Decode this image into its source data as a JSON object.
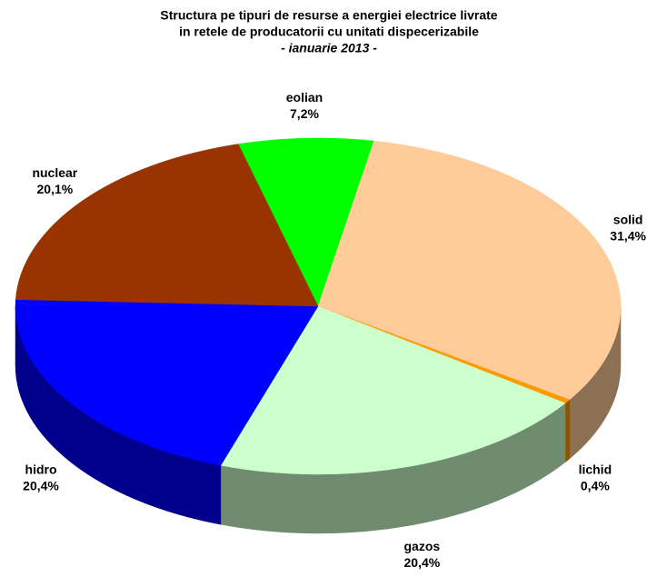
{
  "chart_data": {
    "type": "pie",
    "title": [
      "Structura pe tipuri de resurse a energiei electrice livrate",
      "in retele de producatorii cu unitati dispecerizabile"
    ],
    "subtitle": "- ianuarie 2013 -",
    "categories": [
      "eolian",
      "solid",
      "lichid",
      "gazos",
      "hidro",
      "nuclear"
    ],
    "values": [
      7.2,
      31.4,
      0.4,
      20.4,
      20.4,
      20.1
    ],
    "value_labels": [
      "7,2%",
      "31,4%",
      "0,4%",
      "20,4%",
      "20,4%",
      "20,1%"
    ],
    "colors": [
      "#00ff00",
      "#ffcc99",
      "#ff9900",
      "#ccffcc",
      "#0000ff",
      "#993300"
    ]
  }
}
